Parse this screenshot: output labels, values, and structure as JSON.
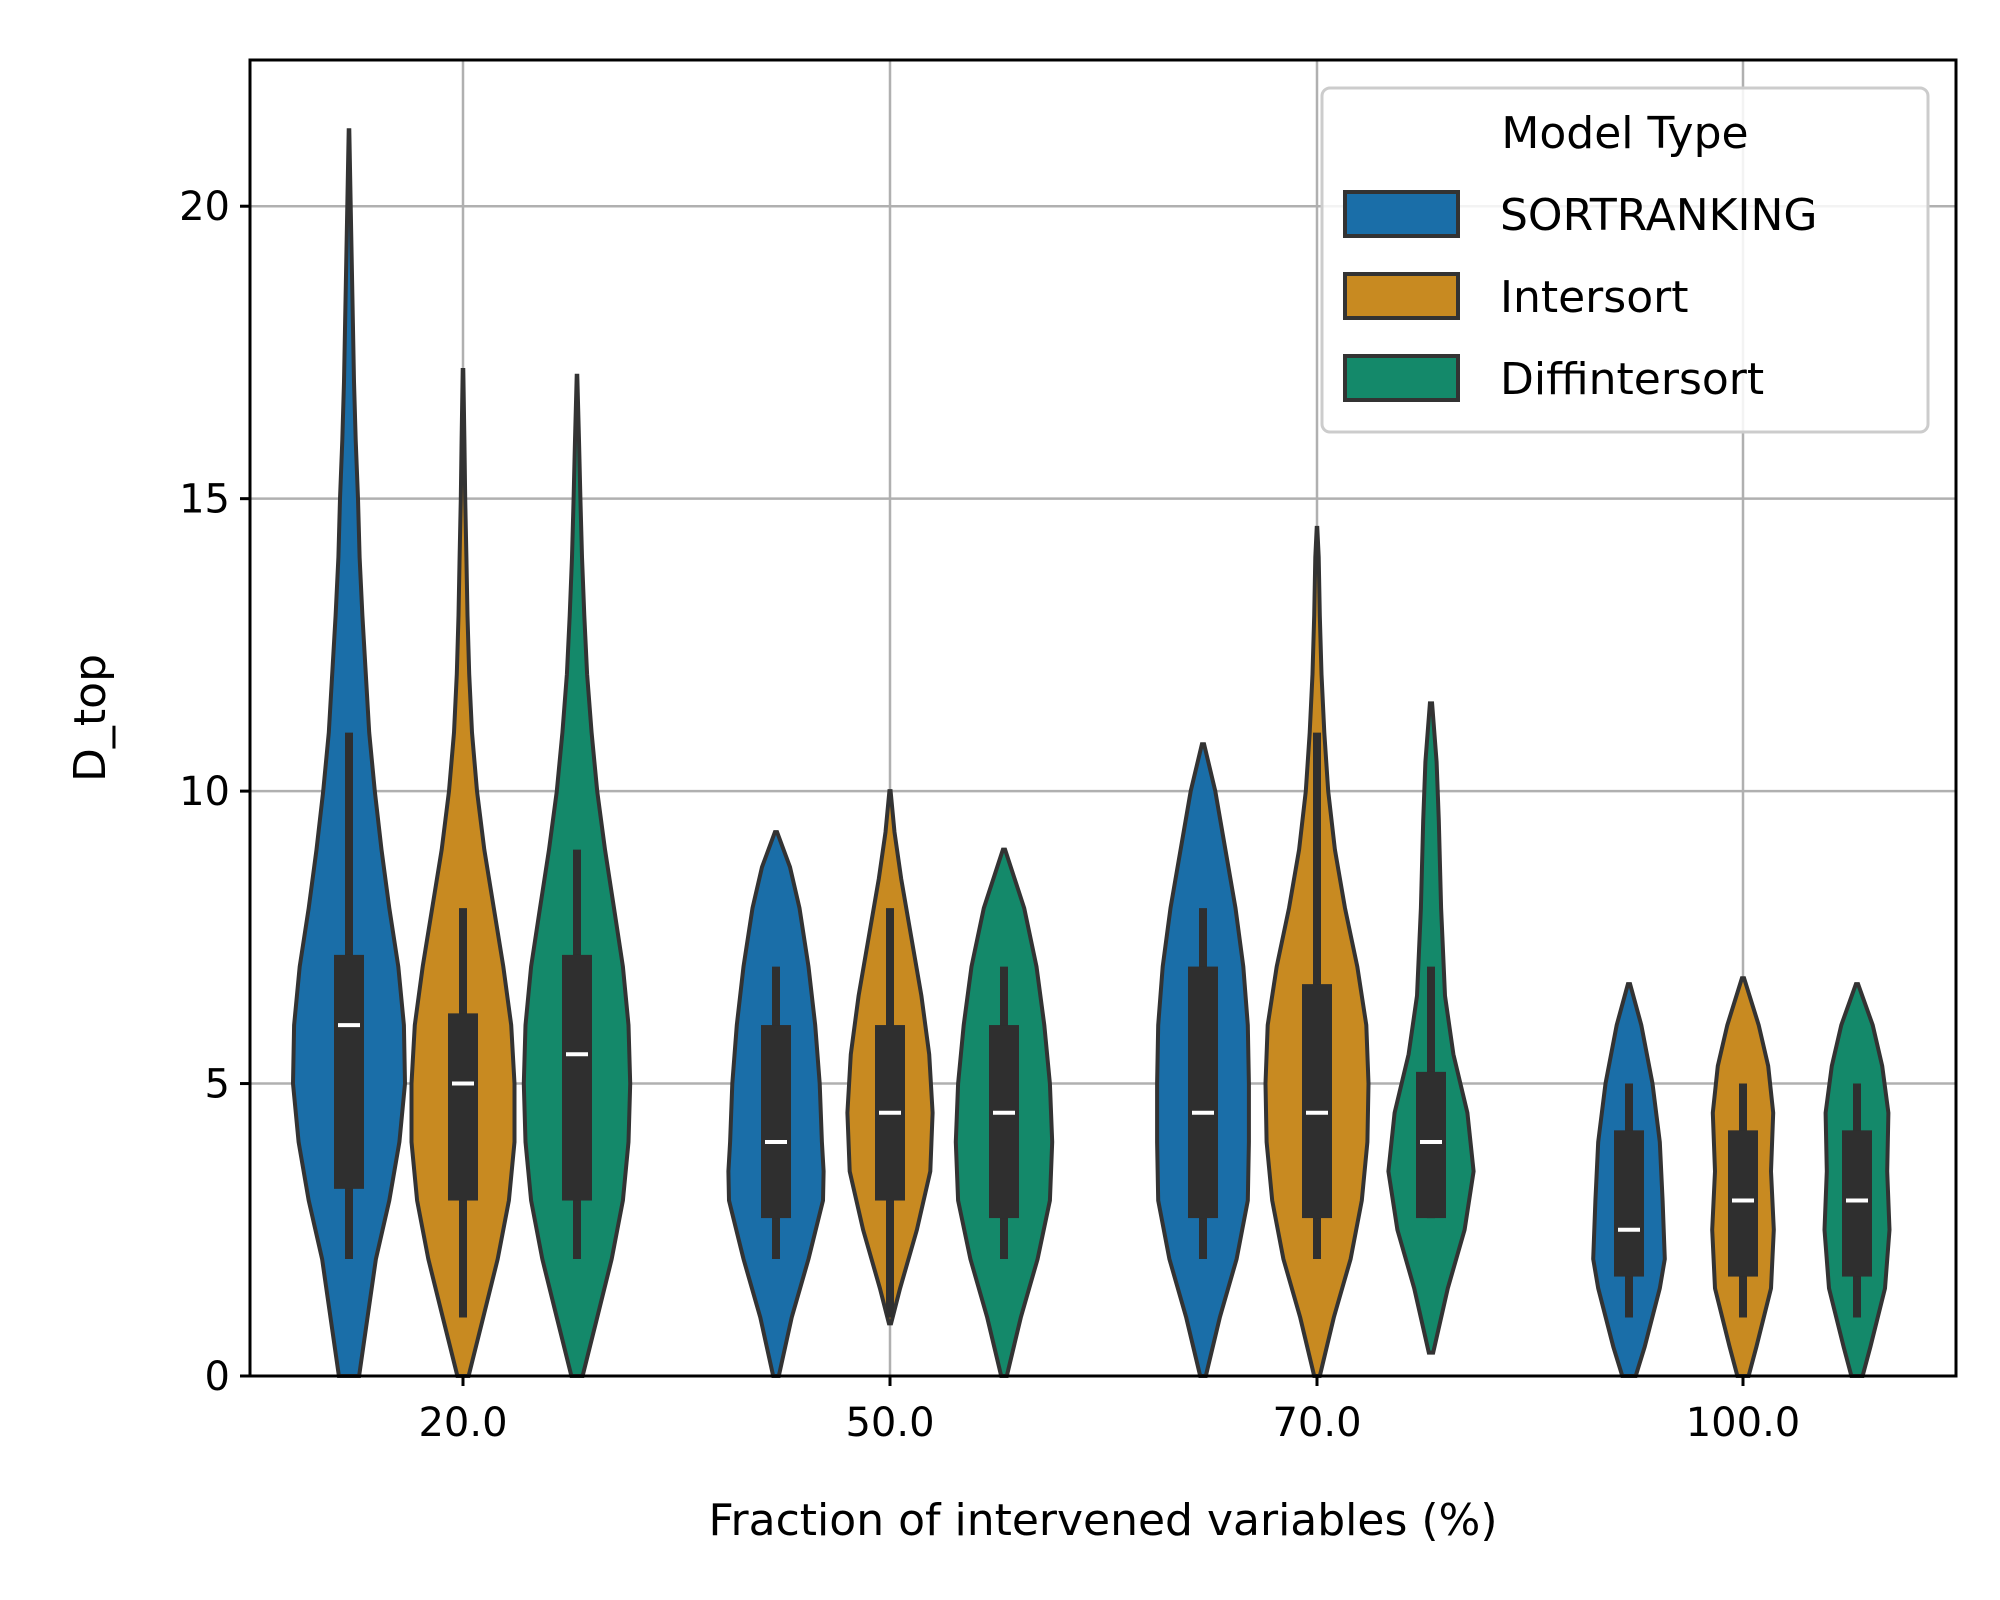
{
  "chart_data": {
    "type": "violin",
    "xlabel": "Fraction of intervened variables (%)",
    "ylabel": "D_top",
    "ylim": [
      0,
      22.5
    ],
    "yticks": [
      0,
      5,
      10,
      15,
      20
    ],
    "grid": true,
    "categories": [
      "20.0",
      "50.0",
      "70.0",
      "100.0"
    ],
    "legend": {
      "title": "Model Type",
      "placement": "top-right"
    },
    "series": [
      {
        "name": "SORTRANKING",
        "color": "#1a6ea8",
        "groups": [
          {
            "min": 0,
            "max": 21.3,
            "q1": 3.2,
            "median": 6.0,
            "q3": 7.2,
            "whisker_low": 2.0,
            "whisker_high": 11.0,
            "profile": [
              [
                0,
                0.18
              ],
              [
                2,
                0.48
              ],
              [
                3,
                0.72
              ],
              [
                4,
                0.9
              ],
              [
                5,
                1.0
              ],
              [
                6,
                0.98
              ],
              [
                7,
                0.88
              ],
              [
                8,
                0.72
              ],
              [
                9,
                0.58
              ],
              [
                10,
                0.46
              ],
              [
                11,
                0.36
              ],
              [
                12,
                0.3
              ],
              [
                13,
                0.24
              ],
              [
                14,
                0.19
              ],
              [
                15,
                0.16
              ],
              [
                16,
                0.12
              ],
              [
                17,
                0.09
              ],
              [
                18,
                0.07
              ],
              [
                19,
                0.05
              ],
              [
                20,
                0.03
              ],
              [
                21.3,
                0.005
              ]
            ]
          },
          {
            "min": 0,
            "max": 9.3,
            "q1": 2.7,
            "median": 4.0,
            "q3": 6.0,
            "whisker_low": 2.0,
            "whisker_high": 7.0,
            "profile": [
              [
                0,
                0.05
              ],
              [
                1,
                0.28
              ],
              [
                2,
                0.58
              ],
              [
                3,
                0.84
              ],
              [
                3.5,
                0.85
              ],
              [
                4,
                0.82
              ],
              [
                5,
                0.78
              ],
              [
                6,
                0.7
              ],
              [
                7,
                0.58
              ],
              [
                8,
                0.42
              ],
              [
                8.7,
                0.25
              ],
              [
                9.3,
                0.02
              ]
            ]
          },
          {
            "min": 0,
            "max": 10.8,
            "q1": 2.7,
            "median": 4.5,
            "q3": 7.0,
            "whisker_low": 2.0,
            "whisker_high": 8.0,
            "profile": [
              [
                0,
                0.05
              ],
              [
                1,
                0.3
              ],
              [
                2,
                0.6
              ],
              [
                3,
                0.8
              ],
              [
                4,
                0.82
              ],
              [
                5,
                0.82
              ],
              [
                6,
                0.8
              ],
              [
                7,
                0.72
              ],
              [
                8,
                0.58
              ],
              [
                9,
                0.4
              ],
              [
                10,
                0.22
              ],
              [
                10.8,
                0.02
              ]
            ]
          },
          {
            "min": 1.0,
            "max": 6.7,
            "q1": 1.7,
            "median": 2.5,
            "q3": 4.2,
            "whisker_low": 1.0,
            "whisker_high": 5.0,
            "profile": [
              [
                0,
                0.12
              ],
              [
                0.5,
                0.28
              ],
              [
                1.5,
                0.55
              ],
              [
                2,
                0.64
              ],
              [
                3,
                0.6
              ],
              [
                4,
                0.55
              ],
              [
                5,
                0.42
              ],
              [
                6,
                0.22
              ],
              [
                6.7,
                0.02
              ]
            ]
          }
        ]
      },
      {
        "name": "Intersort",
        "color": "#c88a21",
        "groups": [
          {
            "min": 0,
            "max": 17.2,
            "q1": 3.0,
            "median": 5.0,
            "q3": 6.2,
            "whisker_low": 1.0,
            "whisker_high": 8.0,
            "profile": [
              [
                0,
                0.1
              ],
              [
                1,
                0.36
              ],
              [
                2,
                0.62
              ],
              [
                3,
                0.82
              ],
              [
                4,
                0.92
              ],
              [
                5,
                0.92
              ],
              [
                6,
                0.86
              ],
              [
                7,
                0.72
              ],
              [
                8,
                0.55
              ],
              [
                9,
                0.38
              ],
              [
                10,
                0.25
              ],
              [
                11,
                0.16
              ],
              [
                12,
                0.11
              ],
              [
                13,
                0.08
              ],
              [
                14,
                0.06
              ],
              [
                15,
                0.04
              ],
              [
                16,
                0.025
              ],
              [
                17.2,
                0.005
              ]
            ]
          },
          {
            "min": 1.0,
            "max": 10.0,
            "q1": 3.0,
            "median": 4.5,
            "q3": 6.0,
            "whisker_low": 1.0,
            "whisker_high": 8.0,
            "profile": [
              [
                0.9,
                0.02
              ],
              [
                1.5,
                0.18
              ],
              [
                2.5,
                0.48
              ],
              [
                3.5,
                0.72
              ],
              [
                4.5,
                0.76
              ],
              [
                5.5,
                0.7
              ],
              [
                6.5,
                0.56
              ],
              [
                7.5,
                0.38
              ],
              [
                8.5,
                0.2
              ],
              [
                9.3,
                0.08
              ],
              [
                10.0,
                0.01
              ]
            ]
          },
          {
            "min": 0,
            "max": 14.5,
            "q1": 2.7,
            "median": 4.5,
            "q3": 6.7,
            "whisker_low": 2.0,
            "whisker_high": 11.0,
            "profile": [
              [
                0,
                0.05
              ],
              [
                1,
                0.3
              ],
              [
                2,
                0.6
              ],
              [
                3,
                0.8
              ],
              [
                4,
                0.9
              ],
              [
                5,
                0.92
              ],
              [
                6,
                0.88
              ],
              [
                7,
                0.72
              ],
              [
                8,
                0.5
              ],
              [
                9,
                0.32
              ],
              [
                10,
                0.2
              ],
              [
                11,
                0.13
              ],
              [
                12,
                0.08
              ],
              [
                13,
                0.05
              ],
              [
                14,
                0.03
              ],
              [
                14.5,
                0.005
              ]
            ]
          },
          {
            "min": 1.0,
            "max": 6.8,
            "q1": 1.7,
            "median": 3.0,
            "q3": 4.2,
            "whisker_low": 1.0,
            "whisker_high": 5.0,
            "profile": [
              [
                0,
                0.1
              ],
              [
                0.5,
                0.24
              ],
              [
                1.5,
                0.5
              ],
              [
                2.5,
                0.55
              ],
              [
                3.5,
                0.5
              ],
              [
                4.5,
                0.54
              ],
              [
                5.3,
                0.45
              ],
              [
                6,
                0.28
              ],
              [
                6.8,
                0.02
              ]
            ]
          }
        ]
      },
      {
        "name": "Diffintersort",
        "color": "#14896a",
        "groups": [
          {
            "min": 0,
            "max": 17.1,
            "q1": 3.0,
            "median": 5.5,
            "q3": 7.2,
            "whisker_low": 2.0,
            "whisker_high": 9.0,
            "profile": [
              [
                0,
                0.1
              ],
              [
                1,
                0.36
              ],
              [
                2,
                0.62
              ],
              [
                3,
                0.82
              ],
              [
                4,
                0.92
              ],
              [
                5,
                0.95
              ],
              [
                6,
                0.92
              ],
              [
                7,
                0.82
              ],
              [
                8,
                0.66
              ],
              [
                9,
                0.5
              ],
              [
                10,
                0.36
              ],
              [
                11,
                0.26
              ],
              [
                12,
                0.18
              ],
              [
                13,
                0.13
              ],
              [
                14,
                0.09
              ],
              [
                15,
                0.06
              ],
              [
                16,
                0.035
              ],
              [
                17.1,
                0.005
              ]
            ]
          },
          {
            "min": 0,
            "max": 9.0,
            "q1": 2.7,
            "median": 4.5,
            "q3": 6.0,
            "whisker_low": 2.0,
            "whisker_high": 7.0,
            "profile": [
              [
                0,
                0.05
              ],
              [
                1,
                0.3
              ],
              [
                2,
                0.6
              ],
              [
                3,
                0.82
              ],
              [
                4,
                0.86
              ],
              [
                5,
                0.82
              ],
              [
                6,
                0.72
              ],
              [
                7,
                0.58
              ],
              [
                8,
                0.36
              ],
              [
                9.0,
                0.02
              ]
            ]
          },
          {
            "min": 0.5,
            "max": 11.5,
            "q1": 2.7,
            "median": 4.0,
            "q3": 5.2,
            "whisker_low": 2.7,
            "whisker_high": 7.0,
            "profile": [
              [
                0.4,
                0.04
              ],
              [
                1.5,
                0.3
              ],
              [
                2.5,
                0.6
              ],
              [
                3.5,
                0.76
              ],
              [
                4.5,
                0.65
              ],
              [
                5.5,
                0.4
              ],
              [
                6.5,
                0.25
              ],
              [
                8,
                0.18
              ],
              [
                9.5,
                0.14
              ],
              [
                10.5,
                0.1
              ],
              [
                11.5,
                0.02
              ]
            ]
          },
          {
            "min": 1.0,
            "max": 6.7,
            "q1": 1.7,
            "median": 3.0,
            "q3": 4.2,
            "whisker_low": 1.0,
            "whisker_high": 5.0,
            "profile": [
              [
                0,
                0.1
              ],
              [
                0.5,
                0.24
              ],
              [
                1.5,
                0.5
              ],
              [
                2.5,
                0.58
              ],
              [
                3.5,
                0.54
              ],
              [
                4.5,
                0.56
              ],
              [
                5.3,
                0.45
              ],
              [
                6,
                0.28
              ],
              [
                6.7,
                0.02
              ]
            ]
          }
        ]
      }
    ]
  }
}
